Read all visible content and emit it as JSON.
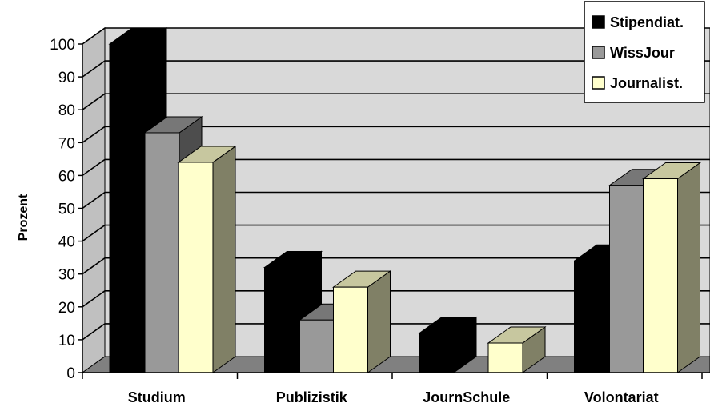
{
  "chart_data": {
    "type": "bar",
    "title": "",
    "xlabel": "",
    "ylabel": "Prozent",
    "ylim": [
      0,
      100
    ],
    "yticks": [
      0,
      10,
      20,
      30,
      40,
      50,
      60,
      70,
      80,
      90,
      100
    ],
    "categories": [
      "Studium",
      "Publizistik",
      "JournSchule",
      "Volontariat"
    ],
    "series": [
      {
        "name": "Stipendiat.",
        "color": "#000000",
        "values": [
          100,
          32,
          12,
          34
        ]
      },
      {
        "name": "WissJour",
        "color": "#999999",
        "values": [
          73,
          16,
          0,
          57
        ]
      },
      {
        "name": "Journalist.",
        "color": "#ffffcc",
        "values": [
          64,
          26,
          9,
          59
        ]
      }
    ],
    "grid": true,
    "legend_position": "top-right",
    "style": "3d-clustered-column"
  }
}
